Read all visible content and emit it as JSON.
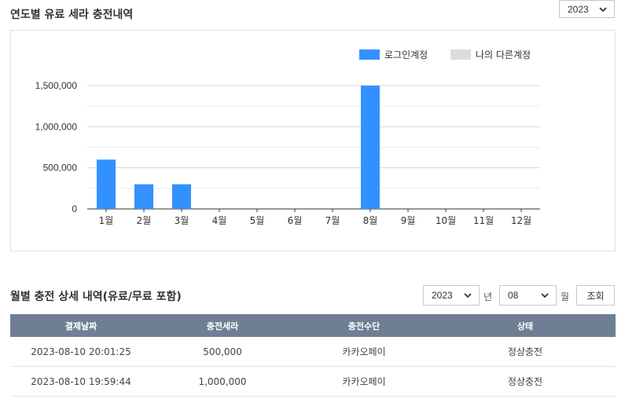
{
  "yearly": {
    "title": "연도별 유료 세라 충전내역",
    "year_select": "2023"
  },
  "chart_data": {
    "type": "bar",
    "categories": [
      "1월",
      "2월",
      "3월",
      "4월",
      "5월",
      "6월",
      "7월",
      "8월",
      "9월",
      "10월",
      "11월",
      "12월"
    ],
    "series": [
      {
        "name": "로그인계정",
        "values": [
          600000,
          300000,
          300000,
          0,
          0,
          0,
          0,
          1500000,
          0,
          0,
          0,
          0
        ],
        "color": "#3391ff"
      },
      {
        "name": "나의 다른계정",
        "values": [
          0,
          0,
          0,
          0,
          0,
          0,
          0,
          0,
          0,
          0,
          0,
          0
        ],
        "color": "#dcdcdc"
      }
    ],
    "yticks": [
      "0",
      "500,000",
      "1,000,000",
      "1,500,000"
    ],
    "ylim": [
      0,
      1500000
    ],
    "grid": true,
    "legend": "top-right"
  },
  "monthly": {
    "title": "월별 충전 상세 내역(유료/무료 포함)",
    "year_value": "2023",
    "year_unit": "년",
    "month_value": "08",
    "month_unit": "월",
    "search_label": "조회",
    "columns": [
      "결제날짜",
      "충전세라",
      "충전수단",
      "상태"
    ],
    "rows": [
      [
        "2023-08-10 20:01:25",
        "500,000",
        "카카오페이",
        "정상충전"
      ],
      [
        "2023-08-10 19:59:44",
        "1,000,000",
        "카카오페이",
        "정상충전"
      ]
    ]
  }
}
